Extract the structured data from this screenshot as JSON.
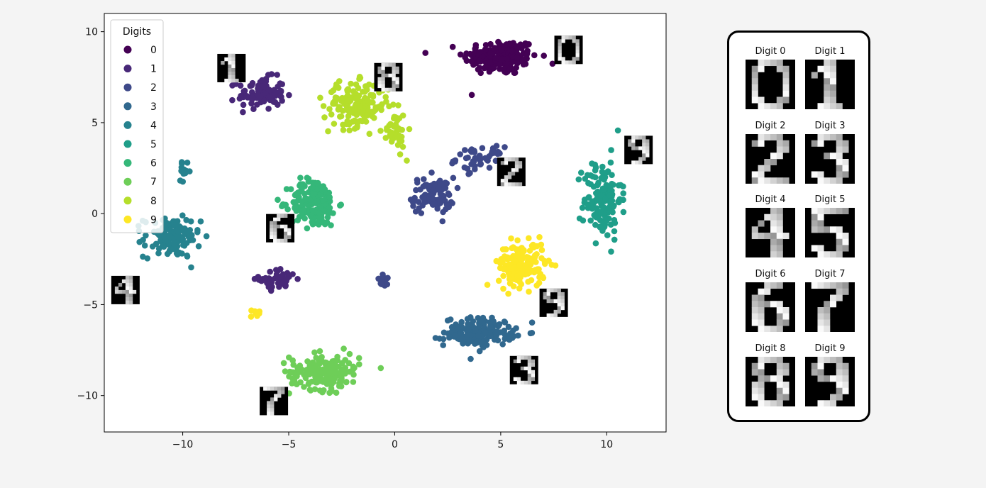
{
  "colors": {
    "viridis": [
      "#440154",
      "#482878",
      "#3e4989",
      "#31688e",
      "#26828e",
      "#1f9e89",
      "#35b779",
      "#6ece58",
      "#b5de2b",
      "#fde725"
    ]
  },
  "chart_data": {
    "type": "scatter",
    "title": "",
    "xlabel": "",
    "ylabel": "",
    "xlim": [
      -13.7,
      12.8
    ],
    "ylim": [
      -12.0,
      11.0
    ],
    "xticks": [
      -10,
      -5,
      0,
      5,
      10
    ],
    "xtick_labels": [
      "−10",
      "−5",
      "0",
      "5",
      "10"
    ],
    "yticks": [
      -10,
      -5,
      0,
      5,
      10
    ],
    "ytick_labels": [
      "−10",
      "−5",
      "0",
      "5",
      "10"
    ],
    "grid": false,
    "legend": {
      "title": "Digits",
      "position": "top-left",
      "entries": [
        "0",
        "1",
        "2",
        "3",
        "4",
        "5",
        "6",
        "7",
        "8",
        "9"
      ]
    },
    "series": [
      {
        "name": "0",
        "clusters": [
          {
            "cx": 5.0,
            "cy": 8.6,
            "sx": 1.6,
            "sy": 0.9,
            "n": 180
          }
        ],
        "points": []
      },
      {
        "name": "1",
        "clusters": [
          {
            "cx": -6.3,
            "cy": 6.6,
            "sx": 1.0,
            "sy": 0.8,
            "n": 90
          },
          {
            "cx": -5.5,
            "cy": -3.6,
            "sx": 0.8,
            "sy": 0.5,
            "n": 45
          }
        ],
        "points": []
      },
      {
        "name": "2",
        "clusters": [
          {
            "cx": 1.8,
            "cy": 1.0,
            "sx": 0.9,
            "sy": 0.9,
            "n": 90
          },
          {
            "cx": 4.0,
            "cy": 3.0,
            "sx": 1.0,
            "sy": 0.6,
            "n": 50
          },
          {
            "cx": -0.5,
            "cy": -3.7,
            "sx": 0.3,
            "sy": 0.3,
            "n": 15
          }
        ],
        "points": []
      },
      {
        "name": "3",
        "clusters": [
          {
            "cx": 4.0,
            "cy": -6.5,
            "sx": 1.5,
            "sy": 0.7,
            "n": 170
          }
        ],
        "points": []
      },
      {
        "name": "4",
        "clusters": [
          {
            "cx": -10.5,
            "cy": -1.3,
            "sx": 1.2,
            "sy": 1.0,
            "n": 130
          },
          {
            "cx": -9.9,
            "cy": 2.3,
            "sx": 0.25,
            "sy": 0.4,
            "n": 15
          }
        ],
        "points": []
      },
      {
        "name": "5",
        "clusters": [
          {
            "cx": 9.8,
            "cy": 0.8,
            "sx": 0.8,
            "sy": 2.0,
            "n": 140
          }
        ],
        "points": []
      },
      {
        "name": "6",
        "clusters": [
          {
            "cx": -3.8,
            "cy": 0.6,
            "sx": 1.0,
            "sy": 1.2,
            "n": 190
          }
        ],
        "points": []
      },
      {
        "name": "7",
        "clusters": [
          {
            "cx": -3.3,
            "cy": -8.7,
            "sx": 1.5,
            "sy": 0.9,
            "n": 180
          }
        ],
        "points": []
      },
      {
        "name": "8",
        "clusters": [
          {
            "cx": -1.8,
            "cy": 6.0,
            "sx": 1.4,
            "sy": 1.1,
            "n": 160
          },
          {
            "cx": 0.0,
            "cy": 4.5,
            "sx": 0.5,
            "sy": 1.0,
            "n": 40
          }
        ],
        "points": []
      },
      {
        "name": "9",
        "clusters": [
          {
            "cx": 6.0,
            "cy": -2.8,
            "sx": 1.0,
            "sy": 1.1,
            "n": 170
          },
          {
            "cx": -6.6,
            "cy": -5.5,
            "sx": 0.3,
            "sy": 0.2,
            "n": 10
          }
        ],
        "points": []
      }
    ],
    "image_annotations": [
      {
        "digit": 0,
        "x": 8.2,
        "y": 9.0
      },
      {
        "digit": 1,
        "x": -7.7,
        "y": 8.0
      },
      {
        "digit": 8,
        "x": -0.3,
        "y": 7.5
      },
      {
        "digit": 9,
        "x": 11.5,
        "y": 3.5
      },
      {
        "digit": 2,
        "x": 5.5,
        "y": 2.3
      },
      {
        "digit": 6,
        "x": -5.4,
        "y": -0.8
      },
      {
        "digit": 4,
        "x": -12.7,
        "y": -4.2
      },
      {
        "digit": 9,
        "x": 7.5,
        "y": -4.9
      },
      {
        "digit": 3,
        "x": 6.1,
        "y": -8.6
      },
      {
        "digit": 7,
        "x": -5.7,
        "y": -10.3
      }
    ]
  },
  "panel": {
    "thumbnails": [
      {
        "label": "Digit 0",
        "digit": 0
      },
      {
        "label": "Digit 1",
        "digit": 1
      },
      {
        "label": "Digit 2",
        "digit": 2
      },
      {
        "label": "Digit 3",
        "digit": 3
      },
      {
        "label": "Digit 4",
        "digit": 4
      },
      {
        "label": "Digit 5",
        "digit": 5
      },
      {
        "label": "Digit 6",
        "digit": 6
      },
      {
        "label": "Digit 7",
        "digit": 7
      },
      {
        "label": "Digit 8",
        "digit": 8
      },
      {
        "label": "Digit 9",
        "digit": 9
      }
    ]
  }
}
